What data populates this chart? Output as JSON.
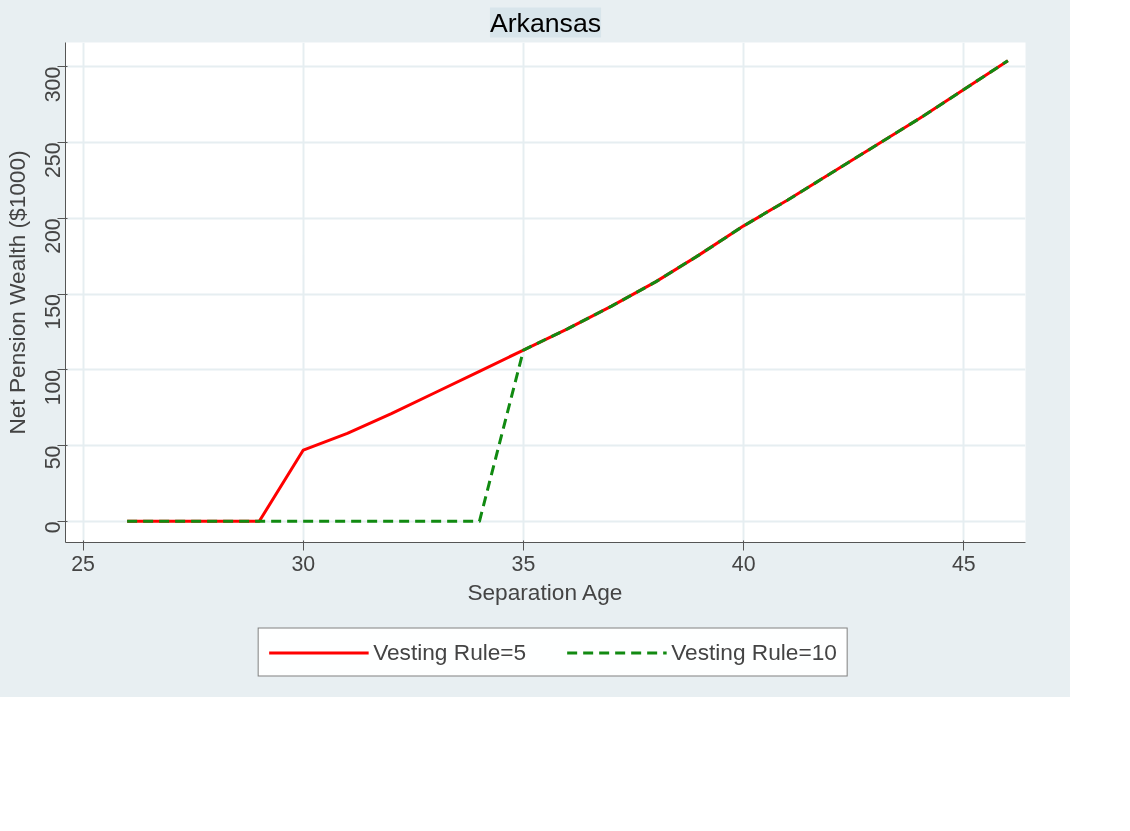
{
  "chart_data": {
    "type": "line",
    "title": "Arkansas",
    "xlabel": "Separation Age",
    "ylabel": "Net Pension Wealth ($1000)",
    "x": [
      26,
      27,
      28,
      29,
      30,
      31,
      32,
      33,
      34,
      35,
      36,
      37,
      38,
      39,
      40,
      41,
      42,
      43,
      44,
      45,
      46
    ],
    "series": [
      {
        "name": "Vesting Rule=5",
        "color": "#ff0000",
        "line_style": "solid",
        "values": [
          0,
          0,
          0,
          0,
          47,
          58,
          71,
          85,
          99,
          113,
          127,
          142,
          158,
          176,
          195,
          212,
          230,
          248,
          266,
          285,
          304
        ]
      },
      {
        "name": "Vesting Rule=10",
        "color": "#118a11",
        "line_style": "dashed",
        "values": [
          0,
          0,
          0,
          0,
          0,
          0,
          0,
          0,
          0,
          113,
          127,
          142,
          158,
          176,
          195,
          212,
          230,
          248,
          266,
          285,
          304
        ]
      }
    ],
    "xlim": [
      24.6,
      46.4
    ],
    "ylim": [
      -14,
      316
    ],
    "xticks": [
      25,
      30,
      35,
      40,
      45
    ],
    "yticks": [
      0,
      50,
      100,
      150,
      200,
      250,
      300
    ],
    "grid": true,
    "legend": "bottom",
    "marker": "none"
  }
}
